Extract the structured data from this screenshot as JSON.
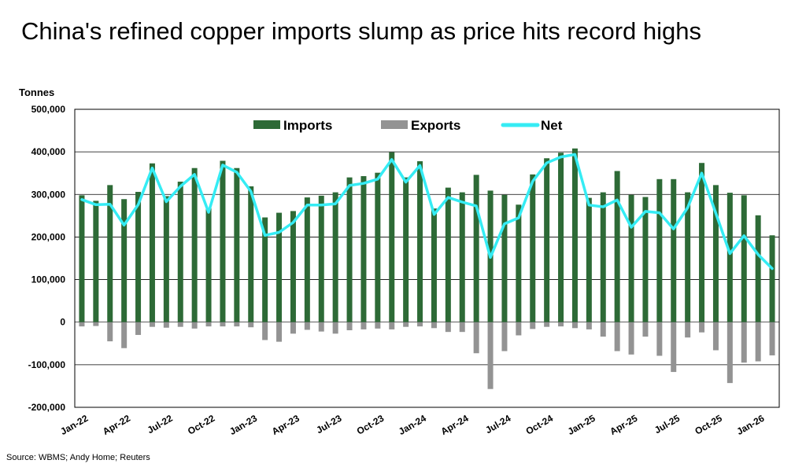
{
  "title": "China's refined copper imports slump as price hits record highs",
  "units_label": "Tonnes",
  "source": "Source: WBMS; Andy Home; Reuters",
  "colors": {
    "imports": "#2d6a36",
    "exports": "#939393",
    "net": "#35ecf4",
    "grid": "#000000"
  },
  "chart_data": {
    "type": "bar",
    "ylabel": "Tonnes",
    "ylim": [
      -200000,
      500000
    ],
    "yticks": [
      -200000,
      -100000,
      0,
      100000,
      200000,
      300000,
      400000,
      500000
    ],
    "ytick_labels": [
      "-200,000",
      "-100,000",
      "0",
      "100,000",
      "200,000",
      "300,000",
      "400,000",
      "500,000"
    ],
    "grid": true,
    "legend_position": "top",
    "categories": [
      "Jan-22",
      "Feb-22",
      "Mar-22",
      "Apr-22",
      "May-22",
      "Jun-22",
      "Jul-22",
      "Aug-22",
      "Sep-22",
      "Oct-22",
      "Nov-22",
      "Dec-22",
      "Jan-23",
      "Feb-23",
      "Mar-23",
      "Apr-23",
      "May-23",
      "Jun-23",
      "Jul-23",
      "Aug-23",
      "Sep-23",
      "Oct-23",
      "Nov-23",
      "Dec-23",
      "Jan-24",
      "Feb-24",
      "Mar-24",
      "Apr-24",
      "May-24",
      "Jun-24",
      "Jul-24",
      "Aug-24",
      "Sep-24",
      "Oct-24",
      "Nov-24",
      "Dec-24",
      "Jan-25",
      "Feb-25",
      "Mar-25",
      "Apr-25",
      "May-25",
      "Jun-25",
      "Jul-25",
      "Aug-25",
      "Sep-25",
      "Oct-25",
      "Nov-25",
      "Dec-25",
      "Jan-26",
      "Feb-26"
    ],
    "x_tick_labels": [
      "Jan-22",
      "Apr-22",
      "Jul-22",
      "Oct-22",
      "Jan-23",
      "Apr-23",
      "Jul-23",
      "Oct-23",
      "Jan-24",
      "Apr-24",
      "Jul-24",
      "Oct-24",
      "Jan-25",
      "Apr-25",
      "Jul-25",
      "Oct-25",
      "Jan-26"
    ],
    "series": [
      {
        "name": "Imports",
        "type": "bar",
        "values": [
          298000,
          285000,
          322000,
          289000,
          306000,
          373000,
          296000,
          330000,
          362000,
          268000,
          379000,
          362000,
          319000,
          246000,
          257000,
          261000,
          293000,
          297000,
          305000,
          340000,
          343000,
          351000,
          399000,
          340000,
          378000,
          267000,
          316000,
          305000,
          346000,
          309000,
          299000,
          276000,
          347000,
          385000,
          398000,
          408000,
          292000,
          305000,
          355000,
          299000,
          294000,
          336000,
          336000,
          305000,
          374000,
          322000,
          304000,
          298000,
          251000,
          204000
        ]
      },
      {
        "name": "Exports",
        "type": "bar",
        "values": [
          -10000,
          -9000,
          -45000,
          -61000,
          -30000,
          -11000,
          -13000,
          -11000,
          -15000,
          -10000,
          -10000,
          -10000,
          -12000,
          -42000,
          -46000,
          -27000,
          -18000,
          -22000,
          -27000,
          -19000,
          -17000,
          -15000,
          -17000,
          -11000,
          -10000,
          -14000,
          -23000,
          -23000,
          -73000,
          -157000,
          -68000,
          -31000,
          -16000,
          -11000,
          -10000,
          -14000,
          -17000,
          -34000,
          -68000,
          -76000,
          -34000,
          -79000,
          -117000,
          -36000,
          -24000,
          -66000,
          -143000,
          -95000,
          -92000,
          -78000
        ]
      },
      {
        "name": "Net",
        "type": "line",
        "values": [
          288000,
          276000,
          277000,
          228000,
          276000,
          362000,
          283000,
          319000,
          347000,
          258000,
          369000,
          352000,
          307000,
          204000,
          211000,
          234000,
          275000,
          275000,
          278000,
          321000,
          326000,
          336000,
          382000,
          329000,
          368000,
          253000,
          293000,
          282000,
          273000,
          152000,
          231000,
          245000,
          331000,
          374000,
          388000,
          394000,
          275000,
          271000,
          287000,
          223000,
          260000,
          257000,
          219000,
          269000,
          350000,
          256000,
          161000,
          203000,
          159000,
          126000
        ]
      }
    ]
  }
}
